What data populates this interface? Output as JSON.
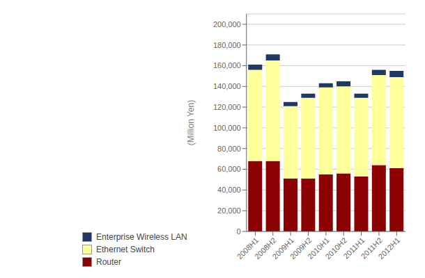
{
  "chart_data": {
    "type": "bar",
    "stacked": true,
    "categories": [
      "2008H1",
      "2008H2",
      "2009H1",
      "2009H2",
      "2010H1",
      "2010H2",
      "2011H1",
      "2011H2",
      "2012H1"
    ],
    "series": [
      {
        "name": "Router",
        "color": "#8B0000",
        "values": [
          68000,
          68000,
          51000,
          51000,
          55000,
          56000,
          53000,
          64000,
          61000
        ]
      },
      {
        "name": "Ethernet Switch",
        "color": "#FFFF99",
        "values": [
          88000,
          97000,
          70000,
          78000,
          84000,
          84000,
          76000,
          87000,
          88000
        ]
      },
      {
        "name": "Enterprise Wireless LAN",
        "color": "#1F3864",
        "values": [
          5000,
          6000,
          4000,
          4000,
          4000,
          5000,
          4000,
          5000,
          6000
        ]
      }
    ],
    "ylabel": "(Million Yen)",
    "ylim": [
      0,
      210000
    ],
    "yticks": [
      0,
      {
        "value": 20000,
        "label": "20,000"
      },
      {
        "value": 40000,
        "label": "40,000"
      },
      {
        "value": 60000,
        "label": "60,000"
      },
      {
        "value": 80000,
        "label": "80,000"
      },
      {
        "value": 100000,
        "label": "100,000"
      },
      {
        "value": 120000,
        "label": "120,000"
      },
      {
        "value": 140000,
        "label": "140,000"
      },
      {
        "value": 160000,
        "label": "160,000"
      },
      {
        "value": 180000,
        "label": "180,000"
      },
      {
        "value": 200000,
        "label": "200,000"
      }
    ],
    "grid": true,
    "legend": "bottom"
  }
}
